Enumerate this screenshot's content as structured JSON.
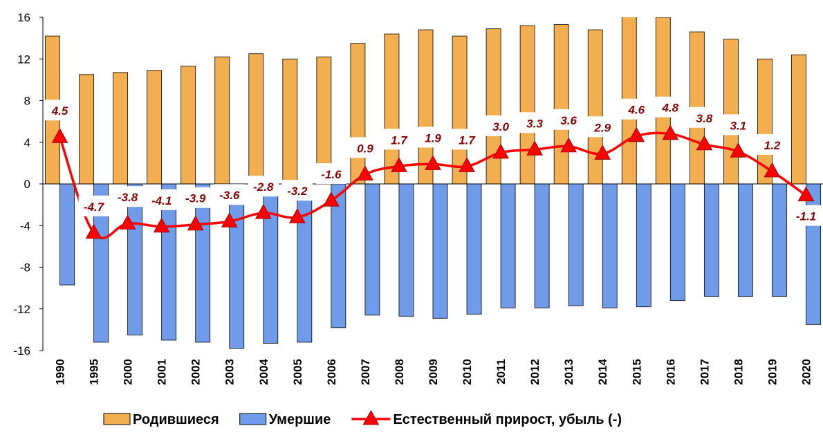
{
  "chart_data": {
    "type": "bar",
    "categories": [
      "1990",
      "1995",
      "2000",
      "2001",
      "2002",
      "2003",
      "2004",
      "2005",
      "2006",
      "2007",
      "2008",
      "2009",
      "2010",
      "2011",
      "2012",
      "2013",
      "2014",
      "2015",
      "2016",
      "2017",
      "2018",
      "2019",
      "2020"
    ],
    "series": [
      {
        "name": "Родившиеся",
        "type": "bar",
        "color": "#f2ae4f",
        "values": [
          14.2,
          10.5,
          10.7,
          10.9,
          11.3,
          12.2,
          12.5,
          12.0,
          12.2,
          13.5,
          14.4,
          14.8,
          14.2,
          14.9,
          15.2,
          15.3,
          14.8,
          16.2,
          16.0,
          14.6,
          13.9,
          12.0,
          12.4
        ]
      },
      {
        "name": "Умершие",
        "type": "bar",
        "color": "#6f9be8",
        "values": [
          -9.7,
          -15.2,
          -14.5,
          -15.0,
          -15.2,
          -15.8,
          -15.3,
          -15.2,
          -13.8,
          -12.6,
          -12.7,
          -12.9,
          -12.5,
          -11.9,
          -11.9,
          -11.7,
          -11.9,
          -11.8,
          -11.2,
          -10.8,
          -10.8,
          -10.8,
          -13.5
        ]
      },
      {
        "name": "Естественный прирост, убыль (-)",
        "type": "line",
        "color": "#ff0000",
        "values": [
          4.5,
          -4.7,
          -3.8,
          -4.1,
          -3.9,
          -3.6,
          -2.8,
          -3.2,
          -1.6,
          0.9,
          1.7,
          1.9,
          1.7,
          3.0,
          3.3,
          3.6,
          2.9,
          4.6,
          4.8,
          3.8,
          3.1,
          1.2,
          -1.1
        ],
        "value_labels": [
          "4.5",
          "-4.7",
          "-3.8",
          "-4.1",
          "-3.9",
          "-3.6",
          "-2.8",
          "-3.2",
          "-1.6",
          "0.9",
          "1.7",
          "1.9",
          "1.7",
          "3.0",
          "3.3",
          "3.6",
          "2.9",
          "4.6",
          "4.8",
          "3.8",
          "3.1",
          "1.2",
          "-1.1"
        ]
      }
    ],
    "ylim": [
      -16,
      16
    ],
    "yticks": [
      -16,
      -12,
      -8,
      -4,
      0,
      4,
      8,
      12,
      16
    ],
    "legend": "bottom"
  }
}
